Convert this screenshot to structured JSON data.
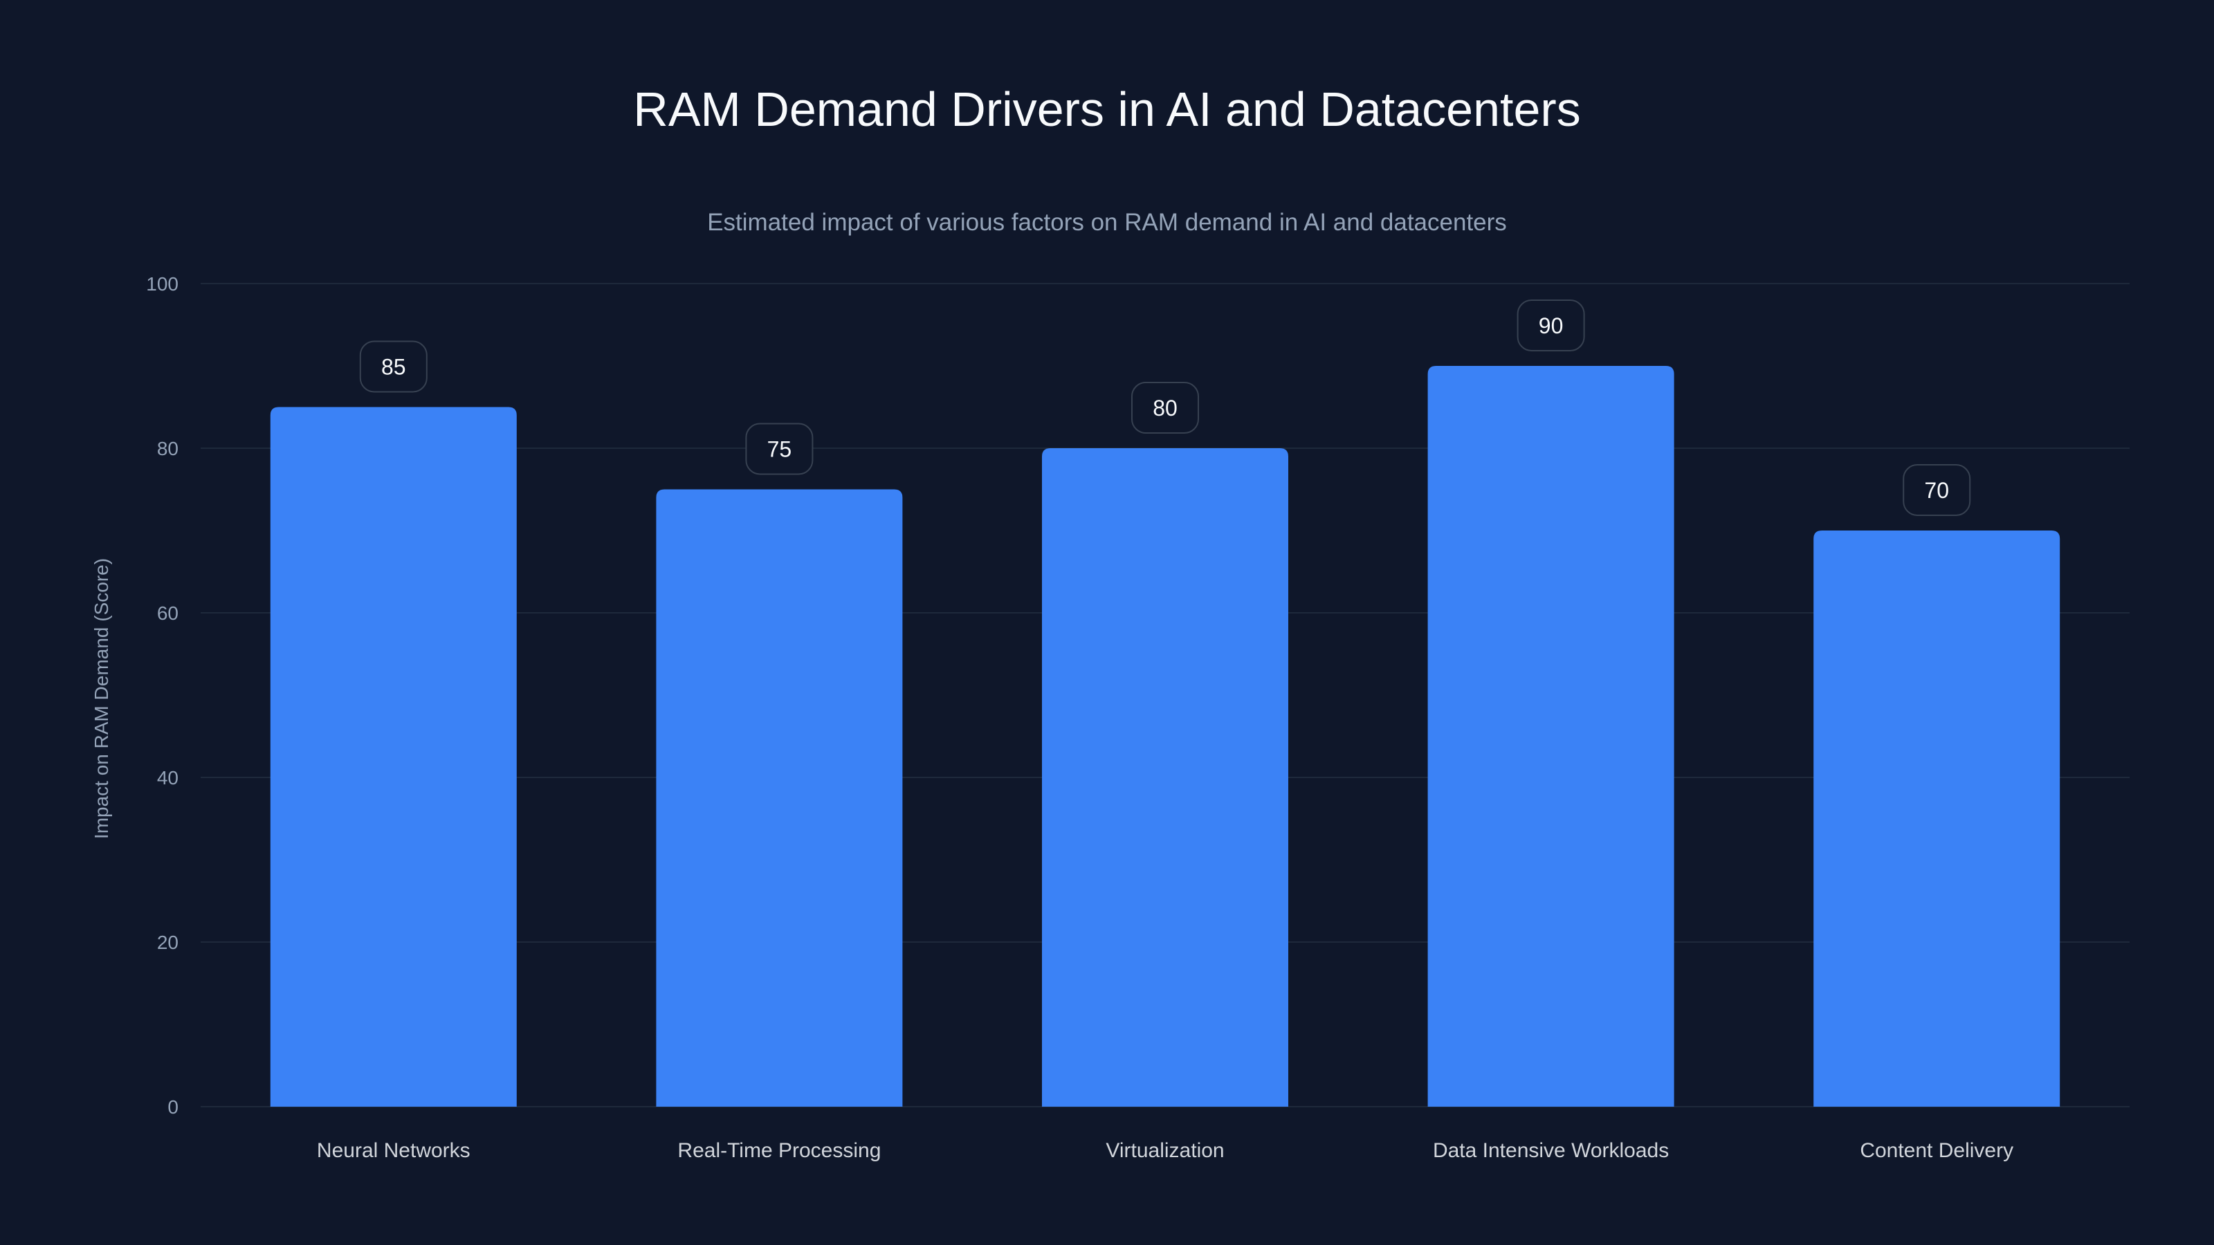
{
  "chart_data": {
    "type": "bar",
    "title": "RAM Demand Drivers in AI and Datacenters",
    "subtitle": "Estimated impact of various factors on RAM demand in AI and datacenters",
    "xlabel": "",
    "ylabel": "Impact on RAM Demand (Score)",
    "categories": [
      "Neural Networks",
      "Real-Time Processing",
      "Virtualization",
      "Data Intensive Workloads",
      "Content Delivery"
    ],
    "values": [
      85,
      75,
      80,
      90,
      70
    ],
    "ylim": [
      0,
      100
    ],
    "yticks": [
      0,
      20,
      40,
      60,
      80,
      100
    ],
    "grid": true,
    "bar_color": "#3b82f6",
    "background": "#0f172a"
  }
}
